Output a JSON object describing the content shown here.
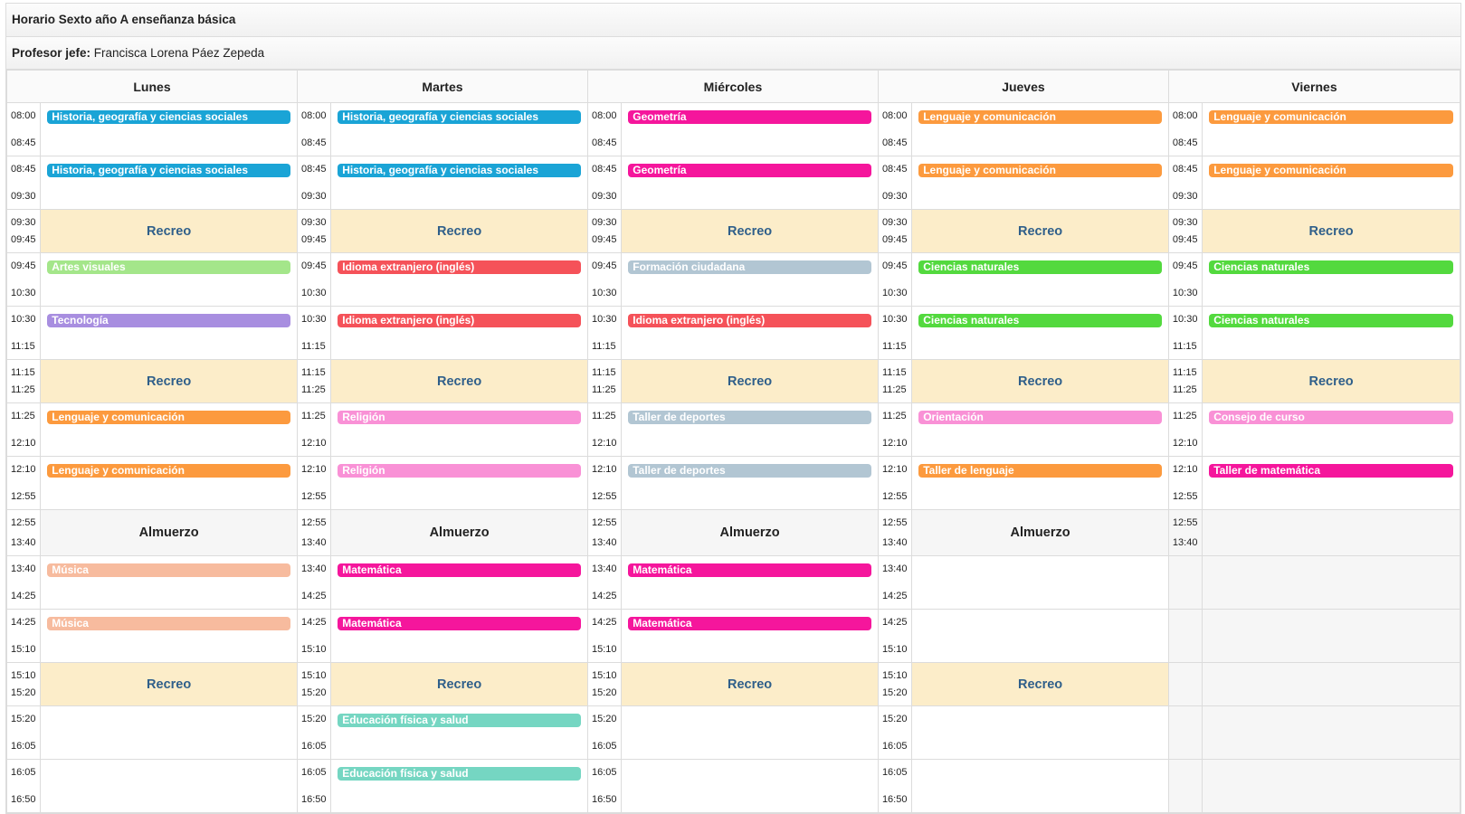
{
  "title": "Horario Sexto año A enseñanza básica",
  "teacher_label": "Profesor jefe:",
  "teacher_name": "Francisca Lorena Páez Zepeda",
  "days": [
    "Lunes",
    "Martes",
    "Miércoles",
    "Jueves",
    "Viernes"
  ],
  "labels": {
    "break": "Recreo",
    "lunch": "Almuerzo"
  },
  "subject_colors": {
    "Historia, geografía y ciencias sociales": "#1aa4d6",
    "Geometría": "#f5169c",
    "Lenguaje y comunicación": "#fc9a3e",
    "Artes visuales": "#a4e68a",
    "Tecnología": "#a88ee0",
    "Idioma extranjero (inglés)": "#f55259",
    "Formación ciudadana": "#b2c6d3",
    "Ciencias naturales": "#53d93e",
    "Religión": "#f991d6",
    "Taller de deportes": "#b2c6d3",
    "Orientación": "#f991d6",
    "Consejo de curso": "#f991d6",
    "Taller de lenguaje": "#fc9a3e",
    "Taller de matemática": "#f5169c",
    "Música": "#f7bb9e",
    "Matemática": "#f5169c",
    "Educación física y salud": "#75d6c2"
  },
  "rows": [
    {
      "type": "class",
      "start": "08:00",
      "end": "08:45",
      "cells": [
        "Historia, geografía y ciencias sociales",
        "Historia, geografía y ciencias sociales",
        "Geometría",
        "Lenguaje y comunicación",
        "Lenguaje y comunicación"
      ]
    },
    {
      "type": "class",
      "start": "08:45",
      "end": "09:30",
      "cells": [
        "Historia, geografía y ciencias sociales",
        "Historia, geografía y ciencias sociales",
        "Geometría",
        "Lenguaje y comunicación",
        "Lenguaje y comunicación"
      ]
    },
    {
      "type": "break",
      "start": "09:30",
      "end": "09:45",
      "cells": [
        "break",
        "break",
        "break",
        "break",
        "break"
      ]
    },
    {
      "type": "class",
      "start": "09:45",
      "end": "10:30",
      "cells": [
        "Artes visuales",
        "Idioma extranjero (inglés)",
        "Formación ciudadana",
        "Ciencias naturales",
        "Ciencias naturales"
      ]
    },
    {
      "type": "class",
      "start": "10:30",
      "end": "11:15",
      "cells": [
        "Tecnología",
        "Idioma extranjero (inglés)",
        "Idioma extranjero (inglés)",
        "Ciencias naturales",
        "Ciencias naturales"
      ]
    },
    {
      "type": "break",
      "start": "11:15",
      "end": "11:25",
      "cells": [
        "break",
        "break",
        "break",
        "break",
        "break"
      ]
    },
    {
      "type": "class",
      "start": "11:25",
      "end": "12:10",
      "cells": [
        "Lenguaje y comunicación",
        "Religión",
        "Taller de deportes",
        "Orientación",
        "Consejo de curso"
      ]
    },
    {
      "type": "class",
      "start": "12:10",
      "end": "12:55",
      "cells": [
        "Lenguaje y comunicación",
        "Religión",
        "Taller de deportes",
        "Taller de lenguaje",
        "Taller de matemática"
      ]
    },
    {
      "type": "lunch",
      "start": "12:55",
      "end": "13:40",
      "cells": [
        "lunch",
        "lunch",
        "lunch",
        "lunch",
        "empty"
      ]
    },
    {
      "type": "class",
      "start": "13:40",
      "end": "14:25",
      "cells": [
        "Música",
        "Matemática",
        "Matemática",
        "",
        "gray"
      ]
    },
    {
      "type": "class",
      "start": "14:25",
      "end": "15:10",
      "cells": [
        "Música",
        "Matemática",
        "Matemática",
        "",
        "gray"
      ]
    },
    {
      "type": "break",
      "start": "15:10",
      "end": "15:20",
      "cells": [
        "break",
        "break",
        "break",
        "break",
        "gray"
      ]
    },
    {
      "type": "class",
      "start": "15:20",
      "end": "16:05",
      "cells": [
        "",
        "Educación física y salud",
        "",
        "",
        "gray"
      ]
    },
    {
      "type": "class",
      "start": "16:05",
      "end": "16:50",
      "cells": [
        "",
        "Educación física y salud",
        "",
        "",
        "gray"
      ]
    }
  ]
}
